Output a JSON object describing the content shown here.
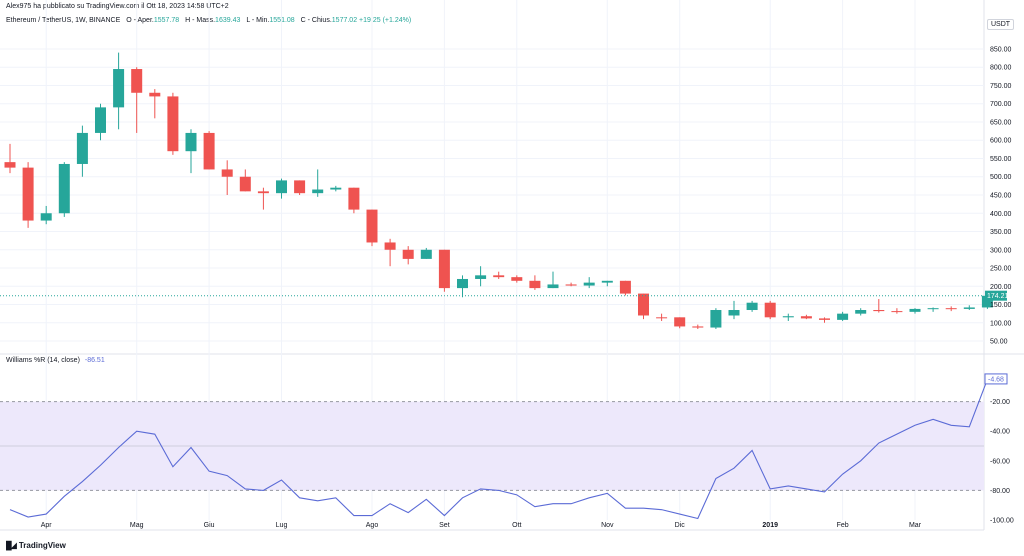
{
  "header": {
    "publisher": "Alex975 ha pubblicato su TradingView.com il Ott 18, 2023 14:58 UTC+2",
    "symbol": "Ethereum / TetherUS, 1W, BINANCE",
    "ohlc": [
      {
        "label": "O - Aper.",
        "value": "1557.78"
      },
      {
        "label": "H - Mass.",
        "value": "1639.43"
      },
      {
        "label": "L - Min.",
        "value": "1551.08"
      },
      {
        "label": "C - Chius.",
        "value": "1577.02"
      }
    ],
    "change": "+19.25 (+1.24%)",
    "currency": "USDT"
  },
  "indicator": {
    "name": "Williams %R (14, close)",
    "value": "-86.51"
  },
  "brand": "TradingView",
  "colors": {
    "up": "#26a69a",
    "down": "#ef5350",
    "wr_line": "#5b6bd6",
    "band_fill": "#ede8fb"
  },
  "chart_data": [
    {
      "type": "candlestick",
      "ylim": [
        20,
        880
      ],
      "yticks": [
        "850.00",
        "800.00",
        "750.00",
        "700.00",
        "650.00",
        "600.00",
        "550.00",
        "500.00",
        "450.00",
        "400.00",
        "350.00",
        "300.00",
        "250.00",
        "200.00",
        "150.00",
        "100.00",
        "50.00"
      ],
      "xticks": [
        {
          "label": "Apr",
          "index": 2
        },
        {
          "label": "Mag",
          "index": 7
        },
        {
          "label": "Giu",
          "index": 11
        },
        {
          "label": "Lug",
          "index": 15
        },
        {
          "label": "Ago",
          "index": 20
        },
        {
          "label": "Set",
          "index": 24
        },
        {
          "label": "Ott",
          "index": 28
        },
        {
          "label": "Nov",
          "index": 33
        },
        {
          "label": "Dic",
          "index": 37
        },
        {
          "label": "2019",
          "index": 42,
          "bold": true
        },
        {
          "label": "Feb",
          "index": 46
        },
        {
          "label": "Mar",
          "index": 50
        }
      ],
      "last_price_label": "174.21",
      "last_price": 174.21,
      "candles": [
        [
          540,
          590,
          510,
          525
        ],
        [
          525,
          540,
          360,
          380
        ],
        [
          380,
          420,
          370,
          400
        ],
        [
          400,
          540,
          390,
          535
        ],
        [
          535,
          640,
          500,
          620
        ],
        [
          620,
          700,
          600,
          690
        ],
        [
          690,
          840,
          630,
          795
        ],
        [
          795,
          800,
          620,
          730
        ],
        [
          730,
          740,
          660,
          720
        ],
        [
          720,
          730,
          560,
          570
        ],
        [
          570,
          630,
          510,
          620
        ],
        [
          620,
          625,
          520,
          520
        ],
        [
          520,
          545,
          450,
          500
        ],
        [
          500,
          520,
          460,
          460
        ],
        [
          460,
          470,
          410,
          455
        ],
        [
          455,
          495,
          440,
          490
        ],
        [
          490,
          490,
          450,
          455
        ],
        [
          455,
          520,
          445,
          465
        ],
        [
          465,
          475,
          460,
          470
        ],
        [
          470,
          470,
          400,
          410
        ],
        [
          410,
          410,
          310,
          320
        ],
        [
          320,
          330,
          255,
          300
        ],
        [
          300,
          310,
          260,
          275
        ],
        [
          275,
          305,
          275,
          300
        ],
        [
          300,
          300,
          185,
          195
        ],
        [
          195,
          230,
          170,
          220
        ],
        [
          220,
          255,
          200,
          230
        ],
        [
          230,
          240,
          220,
          225
        ],
        [
          225,
          230,
          210,
          215
        ],
        [
          215,
          230,
          190,
          195
        ],
        [
          195,
          240,
          195,
          205
        ],
        [
          205,
          210,
          200,
          202
        ],
        [
          202,
          225,
          195,
          210
        ],
        [
          210,
          215,
          200,
          215
        ],
        [
          215,
          215,
          175,
          180
        ],
        [
          180,
          180,
          110,
          120
        ],
        [
          115,
          125,
          105,
          113
        ],
        [
          115,
          115,
          85,
          90
        ],
        [
          90,
          95,
          83,
          87
        ],
        [
          87,
          140,
          83,
          135
        ],
        [
          120,
          160,
          110,
          135
        ],
        [
          135,
          160,
          130,
          155
        ],
        [
          155,
          160,
          110,
          115
        ],
        [
          115,
          125,
          105,
          118
        ],
        [
          118,
          122,
          110,
          112
        ],
        [
          112,
          115,
          100,
          108
        ],
        [
          108,
          130,
          105,
          125
        ],
        [
          125,
          140,
          120,
          135
        ],
        [
          135,
          165,
          128,
          132
        ],
        [
          132,
          140,
          125,
          130
        ],
        [
          130,
          140,
          125,
          138
        ],
        [
          138,
          142,
          130,
          140
        ],
        [
          140,
          145,
          132,
          138
        ],
        [
          138,
          148,
          135,
          142
        ],
        [
          142,
          180,
          138,
          174
        ]
      ]
    },
    {
      "type": "line",
      "name": "Williams %R (14, close)",
      "ylim": [
        -100,
        0
      ],
      "yticks": [
        "-20.00",
        "-40.00",
        "-60.00",
        "-80.00",
        "-100.00"
      ],
      "bands": {
        "upper": -20,
        "middle": -50,
        "lower": -80
      },
      "last_value_label": "-4.68",
      "values": [
        -93,
        -98,
        -96,
        -84,
        -74,
        -63,
        -51,
        -40,
        -42,
        -64,
        -51,
        -67,
        -70,
        -79,
        -80,
        -73,
        -85,
        -87,
        -85,
        -97,
        -97,
        -89,
        -95,
        -86,
        -97,
        -85,
        -79,
        -80,
        -83,
        -91,
        -89,
        -89,
        -85,
        -82,
        -92,
        -92,
        -93,
        -96,
        -99,
        -72,
        -65,
        -53,
        -79,
        -77,
        -79,
        -81,
        -69,
        -60,
        -48,
        -42,
        -36,
        -32,
        -36,
        -37,
        -5
      ]
    }
  ]
}
